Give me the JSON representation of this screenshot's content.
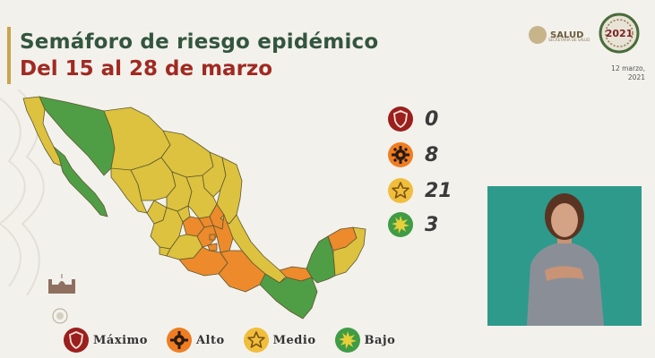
{
  "header": {
    "title": "Semáforo de riesgo epidémico",
    "subtitle": "Del 15 al 28 de marzo"
  },
  "branding": {
    "salud_logo_text": "SALUD",
    "salud_logo_subtext": "SECRETARÍA DE SALUD",
    "year_logo_text": "2021",
    "date_line1": "12 marzo,",
    "date_line2": "2021"
  },
  "counts": [
    {
      "level": "Máximo",
      "value": "0",
      "color": "#9b1f1c",
      "icon": "shield-icon"
    },
    {
      "level": "Alto",
      "value": "8",
      "color": "#ef7d22",
      "icon": "gear-icon"
    },
    {
      "level": "Medio",
      "value": "21",
      "color": "#f0be3c",
      "icon": "star-icon"
    },
    {
      "level": "Bajo",
      "value": "3",
      "color": "#3f9c45",
      "icon": "sun-icon"
    }
  ],
  "legend": [
    {
      "label": "Máximo",
      "color": "#9b1f1c",
      "icon": "shield-icon"
    },
    {
      "label": "Alto",
      "color": "#ef7d22",
      "icon": "gear-icon"
    },
    {
      "label": "Medio",
      "color": "#f0be3c",
      "icon": "star-icon"
    },
    {
      "label": "Bajo",
      "color": "#3f9c45",
      "icon": "sun-icon"
    }
  ],
  "colors": {
    "title_green": "#33553e",
    "subtitle_red": "#a02a22",
    "map_yellow": "#dcc23e",
    "map_orange": "#ec8a2c",
    "map_green": "#4f9e45",
    "interpreter_bg": "#2e9a8c"
  }
}
